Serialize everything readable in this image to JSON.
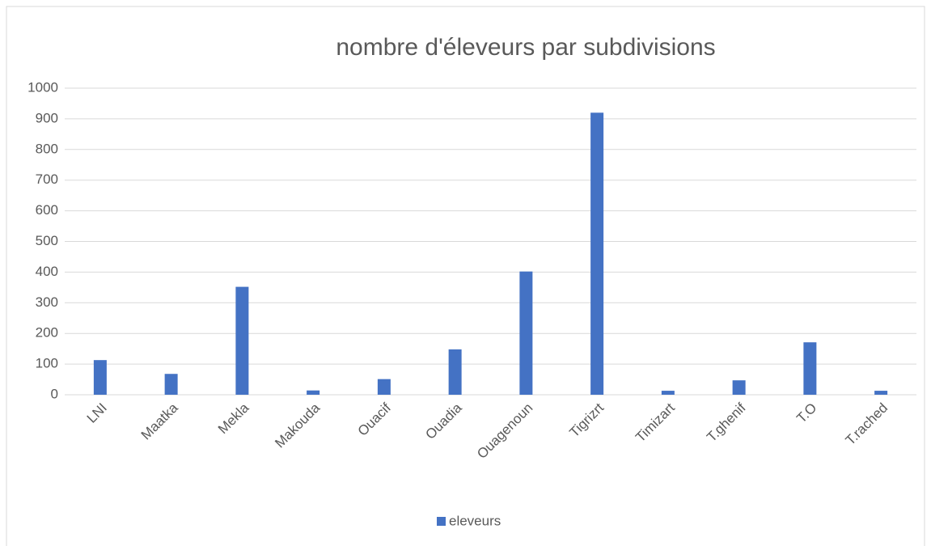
{
  "chart_data": {
    "type": "bar",
    "title": "nombre d'éleveurs par subdivisions",
    "categories": [
      "LNI",
      "Maatka",
      "Mekla",
      "Makouda",
      "Ouacif",
      "Ouadia",
      "Ouagenoun",
      "Tigrizrt",
      "Timizart",
      "T.ghenif",
      "T.O",
      "T.rached"
    ],
    "series": [
      {
        "name": "eleveurs",
        "color": "#4472c4",
        "values": [
          113,
          68,
          352,
          14,
          51,
          148,
          402,
          920,
          13,
          47,
          171,
          13
        ]
      }
    ],
    "ylim": [
      0,
      1000
    ],
    "yticks": [
      0,
      100,
      200,
      300,
      400,
      500,
      600,
      700,
      800,
      900,
      1000
    ],
    "grid": true,
    "legend": "bottom"
  }
}
